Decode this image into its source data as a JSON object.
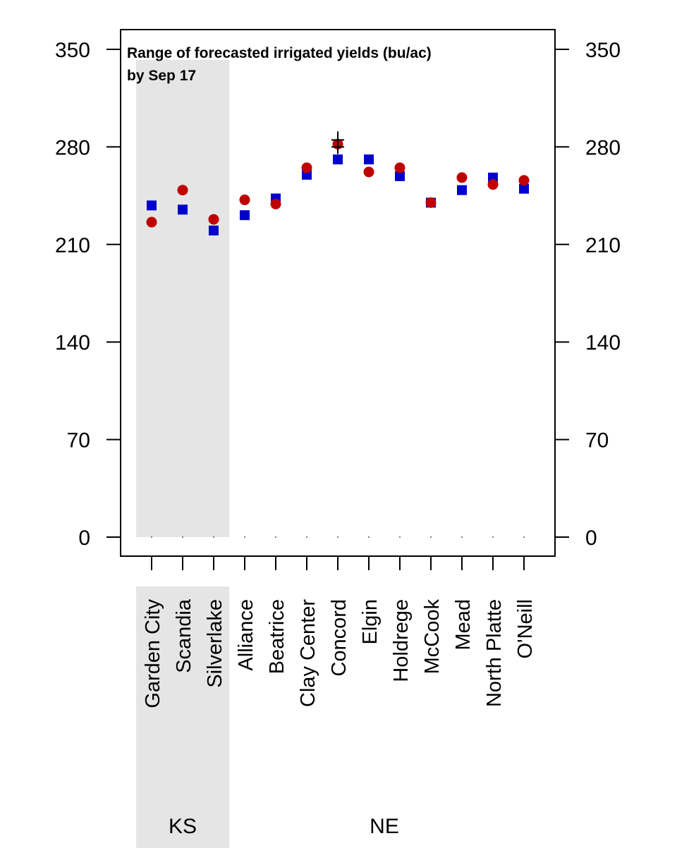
{
  "chart_data": {
    "type": "scatter",
    "title": [
      "Range of forecasted irrigated yields (bu/ac)",
      "by Sep 17"
    ],
    "categories": [
      "Garden City",
      "Scandia",
      "Silverlake",
      "Alliance",
      "Beatrice",
      "Clay Center",
      "Concord",
      "Elgin",
      "Holdrege",
      "McCook",
      "Mead",
      "North Platte",
      "O'Neill"
    ],
    "groups": [
      {
        "label": "KS",
        "start": 0,
        "end": 2,
        "shaded": true
      },
      {
        "label": "NE",
        "start": 3,
        "end": 12,
        "shaded": false
      }
    ],
    "y_ticks": [
      0,
      70,
      140,
      210,
      280,
      350
    ],
    "ylim": [
      -14,
      364
    ],
    "series": [
      {
        "name": "Square markers",
        "marker": "square",
        "color": "#0000CC",
        "values": [
          238,
          235,
          220,
          231,
          243,
          260,
          271,
          271,
          259,
          240,
          249,
          258,
          250
        ]
      },
      {
        "name": "Circle markers",
        "marker": "circle",
        "color": "#C00000",
        "values": [
          226,
          249,
          228,
          242,
          239,
          265,
          282,
          262,
          265,
          240,
          258,
          253,
          256
        ]
      }
    ],
    "annotations": [
      {
        "category": "Concord",
        "symbol": "double-dagger",
        "value": 282
      }
    ],
    "colors": {
      "shade": "#E5E5E5",
      "axis": "#000000"
    }
  }
}
